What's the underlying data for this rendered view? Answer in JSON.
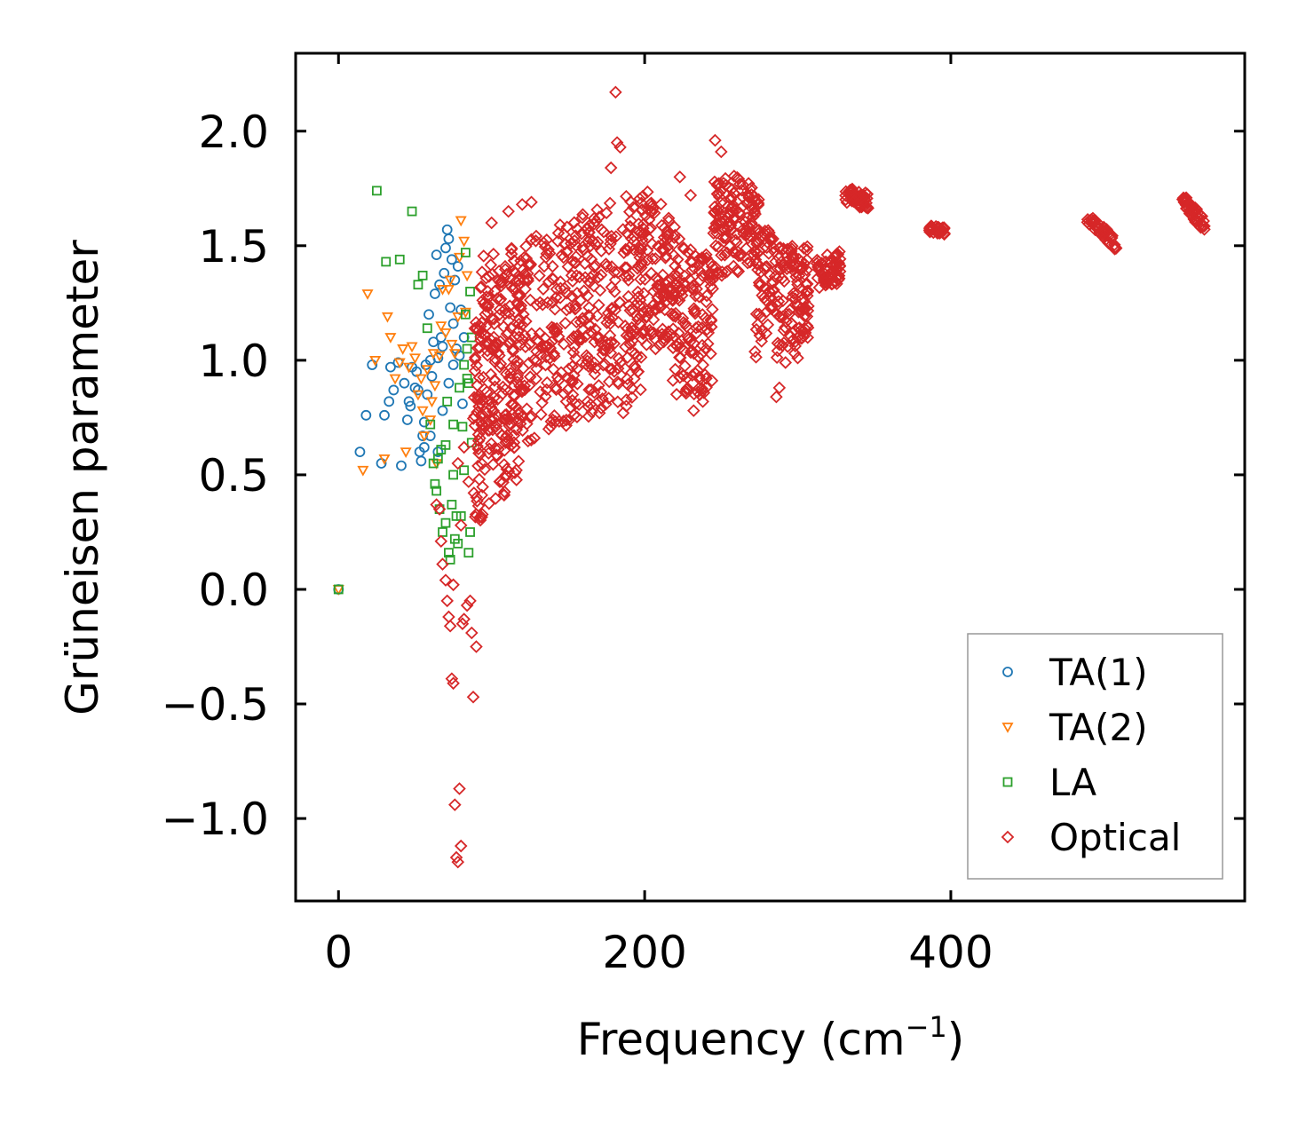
{
  "chart_data": {
    "type": "scatter",
    "title": "",
    "xlabel": "Frequency (cm",
    "xlabel_sup": "−1",
    "xlabel_close": ")",
    "ylabel": "Grüneisen parameter",
    "xlim": [
      -28,
      592
    ],
    "ylim": [
      -1.36,
      2.34
    ],
    "x_ticks": [
      0,
      200,
      400
    ],
    "x_tick_labels": [
      "0",
      "200",
      "400"
    ],
    "y_ticks": [
      -1.0,
      -0.5,
      0.0,
      0.5,
      1.0,
      1.5,
      2.0
    ],
    "y_tick_labels": [
      "−1.0",
      "−0.5",
      "0.0",
      "0.5",
      "1.0",
      "1.5",
      "2.0"
    ],
    "grid": false,
    "legend_position": "lower-right",
    "series": [
      {
        "name": "TA(1)",
        "marker": "circle",
        "color": "#1f77b4",
        "points": [
          [
            0,
            0
          ],
          [
            14,
            0.6
          ],
          [
            18,
            0.76
          ],
          [
            22,
            0.98
          ],
          [
            28,
            0.55
          ],
          [
            30,
            0.76
          ],
          [
            33,
            0.82
          ],
          [
            34,
            0.97
          ],
          [
            36,
            0.87
          ],
          [
            39,
            0.99
          ],
          [
            41,
            0.54
          ],
          [
            43,
            0.9
          ],
          [
            45,
            0.74
          ],
          [
            46,
            0.82
          ],
          [
            47,
            0.8
          ],
          [
            48,
            0.97
          ],
          [
            50,
            0.88
          ],
          [
            51,
            0.95
          ],
          [
            52,
            0.87
          ],
          [
            53,
            0.6
          ],
          [
            54,
            0.56
          ],
          [
            55,
            0.67
          ],
          [
            56,
            0.73
          ],
          [
            57,
            0.98
          ],
          [
            58,
            0.85
          ],
          [
            59,
            1.2
          ],
          [
            60,
            1.0
          ],
          [
            61,
            0.93
          ],
          [
            62,
            1.08
          ],
          [
            63,
            1.29
          ],
          [
            64,
            1.46
          ],
          [
            65,
            1.01
          ],
          [
            66,
            1.33
          ],
          [
            67,
            1.1
          ],
          [
            68,
            1.06
          ],
          [
            69,
            1.38
          ],
          [
            70,
            1.49
          ],
          [
            71,
            1.57
          ],
          [
            72,
            1.53
          ],
          [
            73,
            1.23
          ],
          [
            74,
            1.44
          ],
          [
            75,
            1.16
          ],
          [
            76,
            1.35
          ],
          [
            77,
            1.05
          ],
          [
            78,
            1.41
          ],
          [
            79,
            1.02
          ],
          [
            80,
            1.22
          ],
          [
            81,
            0.81
          ],
          [
            82,
            1.1
          ],
          [
            56,
            0.62
          ],
          [
            60,
            0.67
          ],
          [
            65,
            0.6
          ],
          [
            68,
            0.78
          ],
          [
            72,
            0.9
          ],
          [
            75,
            0.98
          ]
        ]
      },
      {
        "name": "TA(2)",
        "marker": "triangle-down",
        "color": "#ff7f0e",
        "points": [
          [
            0,
            0
          ],
          [
            16,
            0.52
          ],
          [
            19,
            1.29
          ],
          [
            24,
            1.0
          ],
          [
            30,
            0.57
          ],
          [
            32,
            1.19
          ],
          [
            34,
            1.1
          ],
          [
            37,
            0.92
          ],
          [
            40,
            0.99
          ],
          [
            42,
            1.05
          ],
          [
            44,
            0.6
          ],
          [
            46,
            0.97
          ],
          [
            48,
            1.06
          ],
          [
            50,
            1.01
          ],
          [
            52,
            0.85
          ],
          [
            54,
            0.92
          ],
          [
            56,
            0.67
          ],
          [
            58,
            0.96
          ],
          [
            60,
            0.74
          ],
          [
            62,
            1.03
          ],
          [
            64,
            0.55
          ],
          [
            66,
            1.02
          ],
          [
            68,
            1.31
          ],
          [
            70,
            1.12
          ],
          [
            72,
            1.31
          ],
          [
            74,
            1.07
          ],
          [
            76,
            1.03
          ],
          [
            78,
            1.19
          ],
          [
            80,
            1.61
          ],
          [
            82,
            1.52
          ],
          [
            83,
            1.21
          ],
          [
            84,
            1.37
          ],
          [
            61,
            0.82
          ],
          [
            67,
            1.15
          ],
          [
            73,
            1.35
          ],
          [
            79,
            1.45
          ],
          [
            55,
            0.78
          ],
          [
            63,
            0.89
          ]
        ]
      },
      {
        "name": "LA",
        "marker": "square",
        "color": "#2ca02c",
        "points": [
          [
            0,
            0
          ],
          [
            25,
            1.74
          ],
          [
            31,
            1.43
          ],
          [
            40,
            1.44
          ],
          [
            48,
            1.65
          ],
          [
            52,
            1.33
          ],
          [
            55,
            1.37
          ],
          [
            58,
            1.14
          ],
          [
            60,
            0.72
          ],
          [
            62,
            0.55
          ],
          [
            63,
            0.46
          ],
          [
            64,
            0.43
          ],
          [
            65,
            0.57
          ],
          [
            66,
            0.35
          ],
          [
            67,
            0.61
          ],
          [
            68,
            0.25
          ],
          [
            70,
            0.29
          ],
          [
            71,
            0.82
          ],
          [
            72,
            0.16
          ],
          [
            73,
            0.13
          ],
          [
            74,
            0.37
          ],
          [
            75,
            0.72
          ],
          [
            76,
            0.22
          ],
          [
            77,
            0.32
          ],
          [
            78,
            0.2
          ],
          [
            79,
            0.88
          ],
          [
            80,
            0.32
          ],
          [
            81,
            0.71
          ],
          [
            82,
            0.52
          ],
          [
            83,
            1.47
          ],
          [
            84,
            0.92
          ],
          [
            85,
            0.16
          ],
          [
            86,
            0.25
          ],
          [
            87,
            0.64
          ],
          [
            83,
            1.2
          ],
          [
            84,
            1.05
          ],
          [
            85,
            0.9
          ],
          [
            86,
            1.3
          ],
          [
            87,
            1.1
          ],
          [
            82,
            0.98
          ],
          [
            70,
            0.63
          ],
          [
            75,
            0.5
          ]
        ]
      },
      {
        "name": "Optical",
        "marker": "diamond",
        "color": "#d62728",
        "points": [
          [
            64,
            0.37
          ],
          [
            66,
            0.35
          ],
          [
            67,
            0.21
          ],
          [
            68,
            0.11
          ],
          [
            70,
            0.04
          ],
          [
            71,
            -0.05
          ],
          [
            72,
            -0.12
          ],
          [
            73,
            -0.16
          ],
          [
            74,
            -0.39
          ],
          [
            75,
            -0.41
          ],
          [
            76,
            -0.94
          ],
          [
            77,
            -1.17
          ],
          [
            78,
            -1.19
          ],
          [
            79,
            -0.87
          ],
          [
            80,
            -1.12
          ],
          [
            81,
            -0.15
          ],
          [
            82,
            -0.13
          ],
          [
            84,
            -0.07
          ],
          [
            86,
            -0.05
          ],
          [
            87,
            -0.19
          ],
          [
            88,
            -0.47
          ],
          [
            90,
            -0.25
          ],
          [
            75,
            0.02
          ],
          [
            80,
            0.28
          ],
          [
            85,
            0.47
          ],
          [
            78,
            0.55
          ],
          [
            82,
            0.62
          ],
          [
            181,
            2.17
          ],
          [
            182,
            1.95
          ],
          [
            184,
            1.93
          ],
          [
            178,
            1.84
          ],
          [
            246,
            1.96
          ],
          [
            250,
            1.91
          ],
          [
            230,
            1.72
          ],
          [
            223,
            1.8
          ],
          [
            120,
            1.68
          ],
          [
            126,
            1.69
          ],
          [
            111,
            1.65
          ],
          [
            100,
            1.6
          ],
          [
            186,
            0.77
          ],
          [
            188,
            0.8
          ],
          [
            232,
            0.78
          ],
          [
            236,
            0.85
          ],
          [
            238,
            0.82
          ],
          [
            140,
            0.74
          ],
          [
            153,
            0.85
          ],
          [
            286,
            0.84
          ],
          [
            288,
            0.88
          ],
          [
            292,
            0.99
          ],
          [
            298,
            1.03
          ],
          [
            300,
            1.01
          ],
          [
            300,
            1.1
          ],
          [
            305,
            1.12
          ]
        ],
        "clusters": [
          {
            "x": [
              90,
              200
            ],
            "ylow": [
              0.55,
              0.85
            ],
            "yhigh": [
              1.45,
              1.75
            ],
            "n": 520
          },
          {
            "x": [
              88,
              120
            ],
            "ylow": [
              0.25,
              0.5
            ],
            "yhigh": [
              1.2,
              1.5
            ],
            "n": 140
          },
          {
            "x": [
              195,
              220
            ],
            "ylow": [
              1.0,
              1.1
            ],
            "yhigh": [
              1.8,
              1.65
            ],
            "n": 130
          },
          {
            "x": [
              218,
              245
            ],
            "ylow": [
              0.85,
              0.85
            ],
            "yhigh": [
              1.55,
              1.45
            ],
            "n": 130
          },
          {
            "x": [
              245,
              275
            ],
            "ylow": [
              1.3,
              1.45
            ],
            "yhigh": [
              1.85,
              1.75
            ],
            "n": 140
          },
          {
            "x": [
              272,
              285
            ],
            "ylow": [
              1.0,
              1.2
            ],
            "yhigh": [
              1.6,
              1.55
            ],
            "n": 60
          },
          {
            "x": [
              285,
              307
            ],
            "ylow": [
              1.0,
              1.1
            ],
            "yhigh": [
              1.5,
              1.5
            ],
            "n": 110
          },
          {
            "x": [
              312,
              328
            ],
            "ylow": [
              1.3,
              1.33
            ],
            "yhigh": [
              1.45,
              1.48
            ],
            "n": 60
          },
          {
            "x": [
              331,
              346
            ],
            "ylow": [
              1.68,
              1.66
            ],
            "yhigh": [
              1.76,
              1.73
            ],
            "n": 55
          },
          {
            "x": [
              386,
              396
            ],
            "ylow": [
              1.55,
              1.55
            ],
            "yhigh": [
              1.59,
              1.58
            ],
            "n": 30
          },
          {
            "x": [
              489,
              508
            ],
            "ylow": [
              1.6,
              1.48
            ],
            "yhigh": [
              1.64,
              1.54
            ],
            "n": 55
          },
          {
            "x": [
              551,
              566
            ],
            "ylow": [
              1.68,
              1.55
            ],
            "yhigh": [
              1.73,
              1.62
            ],
            "n": 50
          }
        ]
      }
    ]
  }
}
